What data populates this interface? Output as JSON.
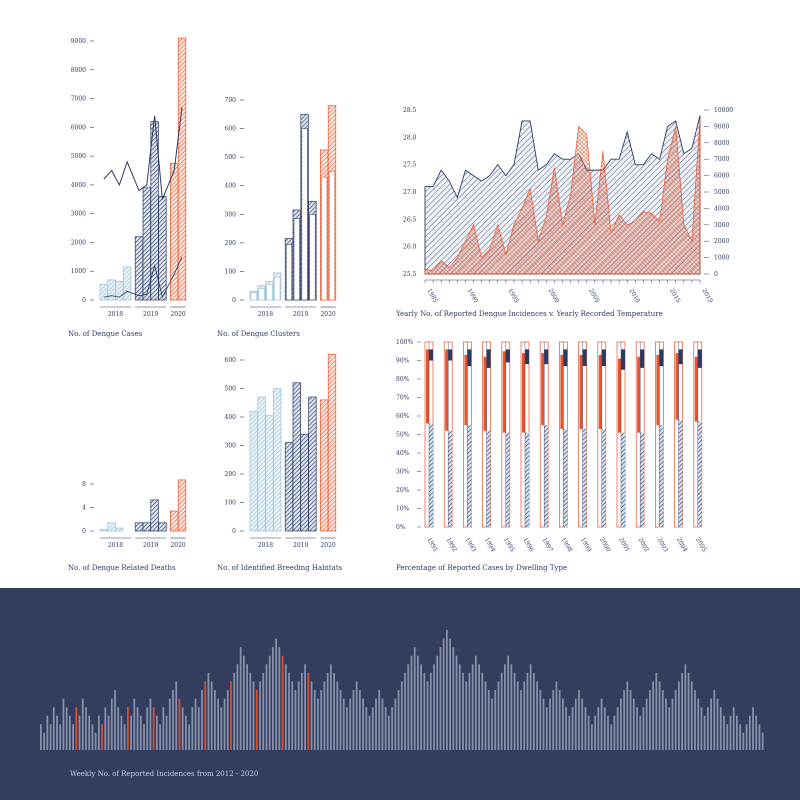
{
  "colors": {
    "navy": "#2c3a62",
    "orange": "#e8522c",
    "light": "#b9d3e2",
    "panel": "#323d60"
  },
  "chart_data": [
    {
      "type": "bar",
      "title": "No. of Dengue Cases",
      "years": [
        "2018",
        "2019",
        "2020"
      ],
      "yticks": [
        "0",
        "1000",
        "2000",
        "3000",
        "4000",
        "5000",
        "6000",
        "7000",
        "8000",
        "9000"
      ],
      "ylim": [
        0,
        9000
      ],
      "values": [
        550,
        700,
        650,
        1150,
        2200,
        3900,
        6200,
        3600,
        4750,
        9100
      ],
      "series_year": [
        "2018",
        "2018",
        "2018",
        "2018",
        "2019",
        "2019",
        "2019",
        "2019",
        "2020",
        "2020"
      ],
      "overlay_line": [
        4200,
        4500,
        4000,
        4800,
        3800,
        4000,
        6400,
        3500,
        4500,
        6700
      ],
      "overlay_line2": [
        100,
        150,
        100,
        300,
        150,
        200,
        1200,
        100,
        900,
        1500
      ]
    },
    {
      "type": "bar",
      "title": "No. of Dengue Clusters",
      "years": [
        "2018",
        "2019",
        "2020"
      ],
      "yticks": [
        "0",
        "100",
        "200",
        "300",
        "400",
        "500",
        "600",
        "700"
      ],
      "ylim": [
        0,
        700
      ],
      "values": [
        30,
        50,
        65,
        95,
        215,
        315,
        650,
        345,
        525,
        680
      ],
      "inner_values": [
        25,
        40,
        55,
        80,
        195,
        285,
        600,
        300,
        430,
        450
      ],
      "series_year": [
        "2018",
        "2018",
        "2018",
        "2018",
        "2019",
        "2019",
        "2019",
        "2019",
        "2020",
        "2020"
      ]
    },
    {
      "type": "bar",
      "title": "No. of Dengue Related Deaths",
      "years": [
        "2018",
        "2019",
        "2020"
      ],
      "yticks": [
        "0",
        "4",
        "8"
      ],
      "ylim": [
        0,
        8
      ],
      "values": [
        0.3,
        1.4,
        0.5,
        0,
        1.4,
        1.4,
        5.3,
        1.4,
        3.4,
        8.7
      ],
      "series_year": [
        "2018",
        "2018",
        "2018",
        "2018",
        "2019",
        "2019",
        "2019",
        "2019",
        "2020",
        "2020"
      ]
    },
    {
      "type": "bar",
      "title": "No. of  Identified Breeding Habitats",
      "years": [
        "2018",
        "2019",
        "2020"
      ],
      "yticks": [
        "0",
        "100",
        "200",
        "300",
        "400",
        "500",
        "600"
      ],
      "ylim": [
        0,
        600
      ],
      "values": [
        420,
        470,
        405,
        500,
        310,
        520,
        340,
        470,
        460,
        620
      ],
      "series_year": [
        "2018",
        "2018",
        "2018",
        "2018",
        "2019",
        "2019",
        "2019",
        "2019",
        "2020",
        "2020"
      ]
    },
    {
      "type": "area",
      "title": "Yearly No. of Reported Dengue Incidences v. Yearly Recorded Temperature",
      "x": [
        1985,
        1986,
        1987,
        1988,
        1989,
        1990,
        1991,
        1992,
        1993,
        1994,
        1995,
        1996,
        1997,
        1998,
        1999,
        2000,
        2001,
        2002,
        2003,
        2004,
        2005,
        2006,
        2007,
        2008,
        2009,
        2010,
        2011,
        2012,
        2013,
        2014,
        2015,
        2016,
        2017,
        2018,
        2019
      ],
      "temperature": [
        27.1,
        27.1,
        27.4,
        27.2,
        26.9,
        27.4,
        27.3,
        27.2,
        27.3,
        27.5,
        27.3,
        27.5,
        28.3,
        28.3,
        27.4,
        27.5,
        27.7,
        27.6,
        27.6,
        27.7,
        27.4,
        27.4,
        27.4,
        27.6,
        27.6,
        28.1,
        27.5,
        27.5,
        27.7,
        27.6,
        28.2,
        28.3,
        27.7,
        27.8,
        28.4
      ],
      "incidences": [
        300,
        200,
        800,
        400,
        1000,
        2000,
        3000,
        1000,
        1500,
        3000,
        1200,
        3000,
        4000,
        5200,
        2000,
        3500,
        6500,
        3000,
        4800,
        9000,
        8500,
        3000,
        7500,
        2500,
        3600,
        3000,
        3200,
        3800,
        3700,
        3200,
        7000,
        9000,
        3000,
        2000,
        9500
      ],
      "ylim_left": [
        25.5,
        28.5
      ],
      "ylim_right": [
        0,
        10000
      ],
      "yticks_left": [
        "25.5",
        "26.0",
        "26.5",
        "27.0",
        "27.5",
        "28.0",
        "28.5"
      ],
      "yticks_right": [
        "0",
        "1000",
        "2000",
        "3000",
        "4000",
        "5000",
        "6000",
        "7000",
        "8000",
        "9000",
        "10000"
      ],
      "xticks": [
        "1985",
        "1990",
        "1995",
        "2000",
        "2005",
        "2010",
        "2015",
        "2019"
      ]
    },
    {
      "type": "bar",
      "title": "Percentage of Reported Cases by Dwelling Type",
      "categories": [
        "1991",
        "1992",
        "1993",
        "1994",
        "1995",
        "1996",
        "1997",
        "1998",
        "1999",
        "2000",
        "2001",
        "2002",
        "2003",
        "2004",
        "2005"
      ],
      "yticks": [
        "0%",
        "10%",
        "20%",
        "30%",
        "40%",
        "50%",
        "60%",
        "70%",
        "80%",
        "90%",
        "100%"
      ],
      "ylim": [
        0,
        100
      ],
      "stack_bottom": [
        56,
        52,
        55,
        52,
        51,
        51,
        55,
        53,
        53,
        53,
        51,
        51,
        55,
        58,
        57
      ],
      "stack_red_top": [
        96,
        96,
        93,
        92,
        95,
        94,
        94,
        93,
        93,
        93,
        91,
        92,
        93,
        94,
        92
      ]
    },
    {
      "type": "bar",
      "title": "Weekly No. of Reported Incidences from 2012 - 2020",
      "values": [
        3,
        2,
        4,
        3,
        5,
        4,
        3,
        6,
        5,
        4,
        3,
        5,
        4,
        6,
        5,
        4,
        3,
        2,
        4,
        3,
        5,
        4,
        6,
        7,
        5,
        4,
        3,
        5,
        4,
        6,
        5,
        4,
        3,
        5,
        6,
        5,
        4,
        3,
        5,
        4,
        6,
        7,
        8,
        6,
        5,
        4,
        3,
        5,
        6,
        5,
        7,
        8,
        9,
        8,
        7,
        6,
        5,
        6,
        7,
        8,
        9,
        10,
        12,
        11,
        10,
        9,
        8,
        7,
        8,
        9,
        10,
        11,
        12,
        13,
        12,
        11,
        10,
        9,
        8,
        7,
        8,
        9,
        10,
        9,
        8,
        7,
        6,
        7,
        8,
        9,
        10,
        9,
        8,
        7,
        6,
        5,
        6,
        7,
        8,
        7,
        6,
        5,
        4,
        5,
        6,
        7,
        6,
        5,
        4,
        5,
        6,
        7,
        8,
        9,
        10,
        11,
        12,
        11,
        10,
        9,
        8,
        9,
        10,
        11,
        12,
        13,
        14,
        13,
        12,
        11,
        10,
        9,
        8,
        9,
        10,
        11,
        10,
        9,
        8,
        7,
        6,
        7,
        8,
        9,
        10,
        11,
        10,
        9,
        8,
        7,
        8,
        9,
        10,
        9,
        8,
        7,
        6,
        5,
        6,
        7,
        8,
        7,
        6,
        5,
        4,
        5,
        6,
        7,
        6,
        5,
        4,
        3,
        4,
        5,
        6,
        5,
        4,
        3,
        4,
        5,
        6,
        7,
        8,
        7,
        6,
        5,
        4,
        5,
        6,
        7,
        8,
        9,
        8,
        7,
        6,
        5,
        6,
        7,
        8,
        9,
        10,
        9,
        8,
        7,
        6,
        5,
        4,
        5,
        6,
        7,
        6,
        5,
        4,
        3,
        4,
        5,
        4,
        3,
        2,
        3,
        4,
        5,
        4,
        3,
        2
      ]
    }
  ]
}
